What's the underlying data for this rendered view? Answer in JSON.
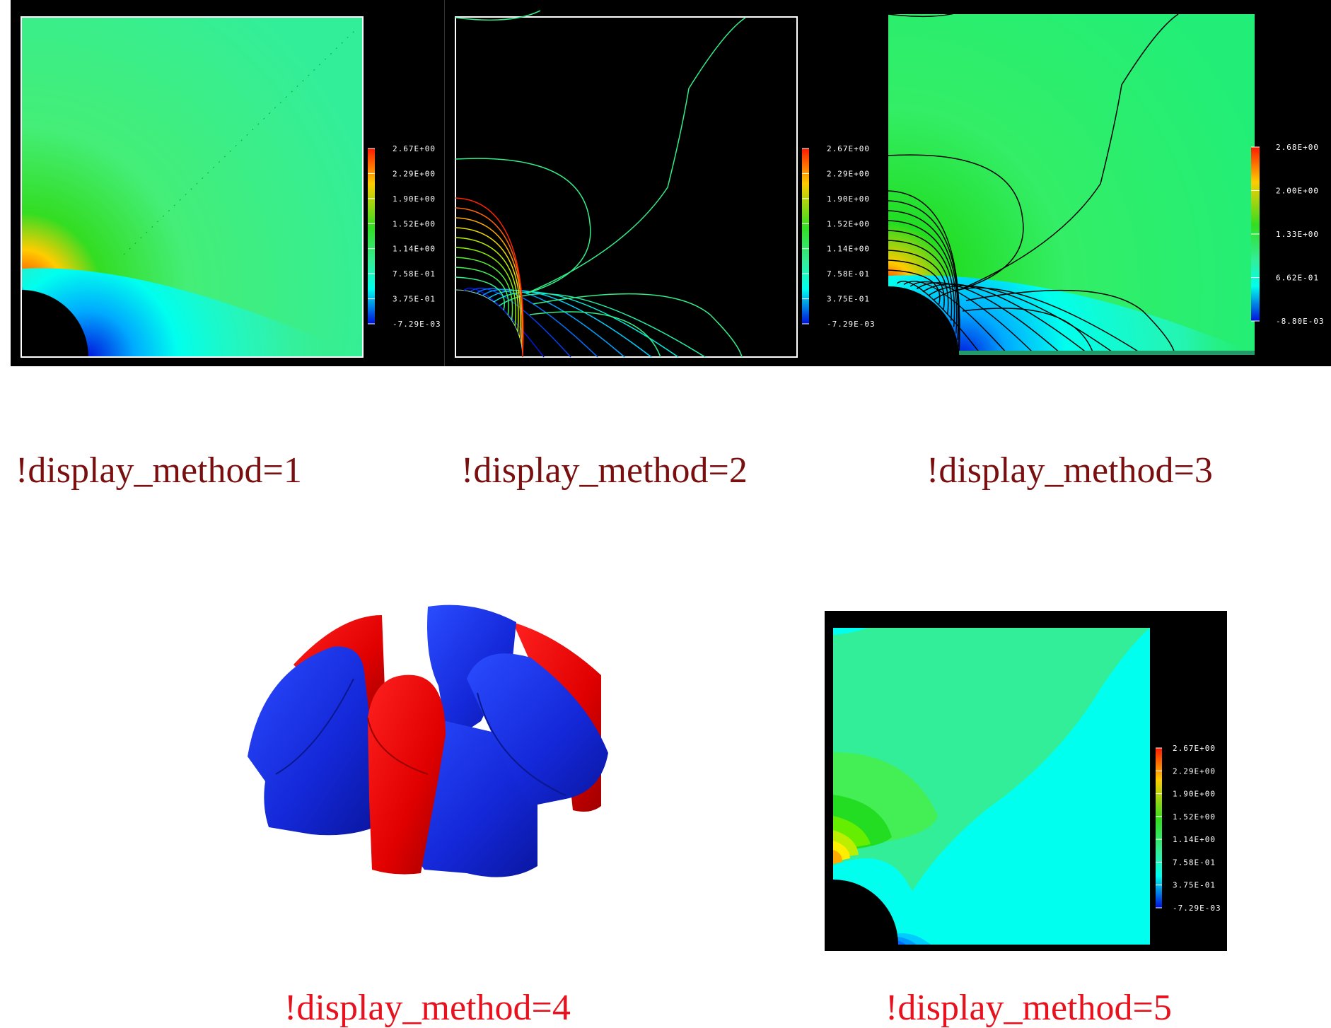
{
  "panels": [
    {
      "id": 1,
      "caption": "!display_method=1",
      "legend": [
        "2.67E+00",
        "2.29E+00",
        "1.90E+00",
        "1.52E+00",
        "1.14E+00",
        "7.58E-01",
        "3.75E-01",
        "-7.29E-03"
      ]
    },
    {
      "id": 2,
      "caption": "!display_method=2",
      "legend": [
        "2.67E+00",
        "2.29E+00",
        "1.90E+00",
        "1.52E+00",
        "1.14E+00",
        "7.58E-01",
        "3.75E-01",
        "-7.29E-03"
      ]
    },
    {
      "id": 3,
      "caption": "!display_method=3",
      "legend": [
        "2.68E+00",
        "2.00E+00",
        "1.33E+00",
        "6.62E-01",
        "-8.80E-03"
      ]
    },
    {
      "id": 4,
      "caption": "!display_method=4"
    },
    {
      "id": 5,
      "caption": "!display_method=5",
      "legend": [
        "2.67E+00",
        "2.29E+00",
        "1.90E+00",
        "1.52E+00",
        "1.14E+00",
        "7.58E-01",
        "3.75E-01",
        "-7.29E-03"
      ]
    }
  ],
  "colors": {
    "caption_dark": "#7a0f0f",
    "caption_red": "#e8121e",
    "field_green": "#33ee99",
    "iso_red": "#e8101a",
    "iso_blue": "#1a2ee0"
  }
}
